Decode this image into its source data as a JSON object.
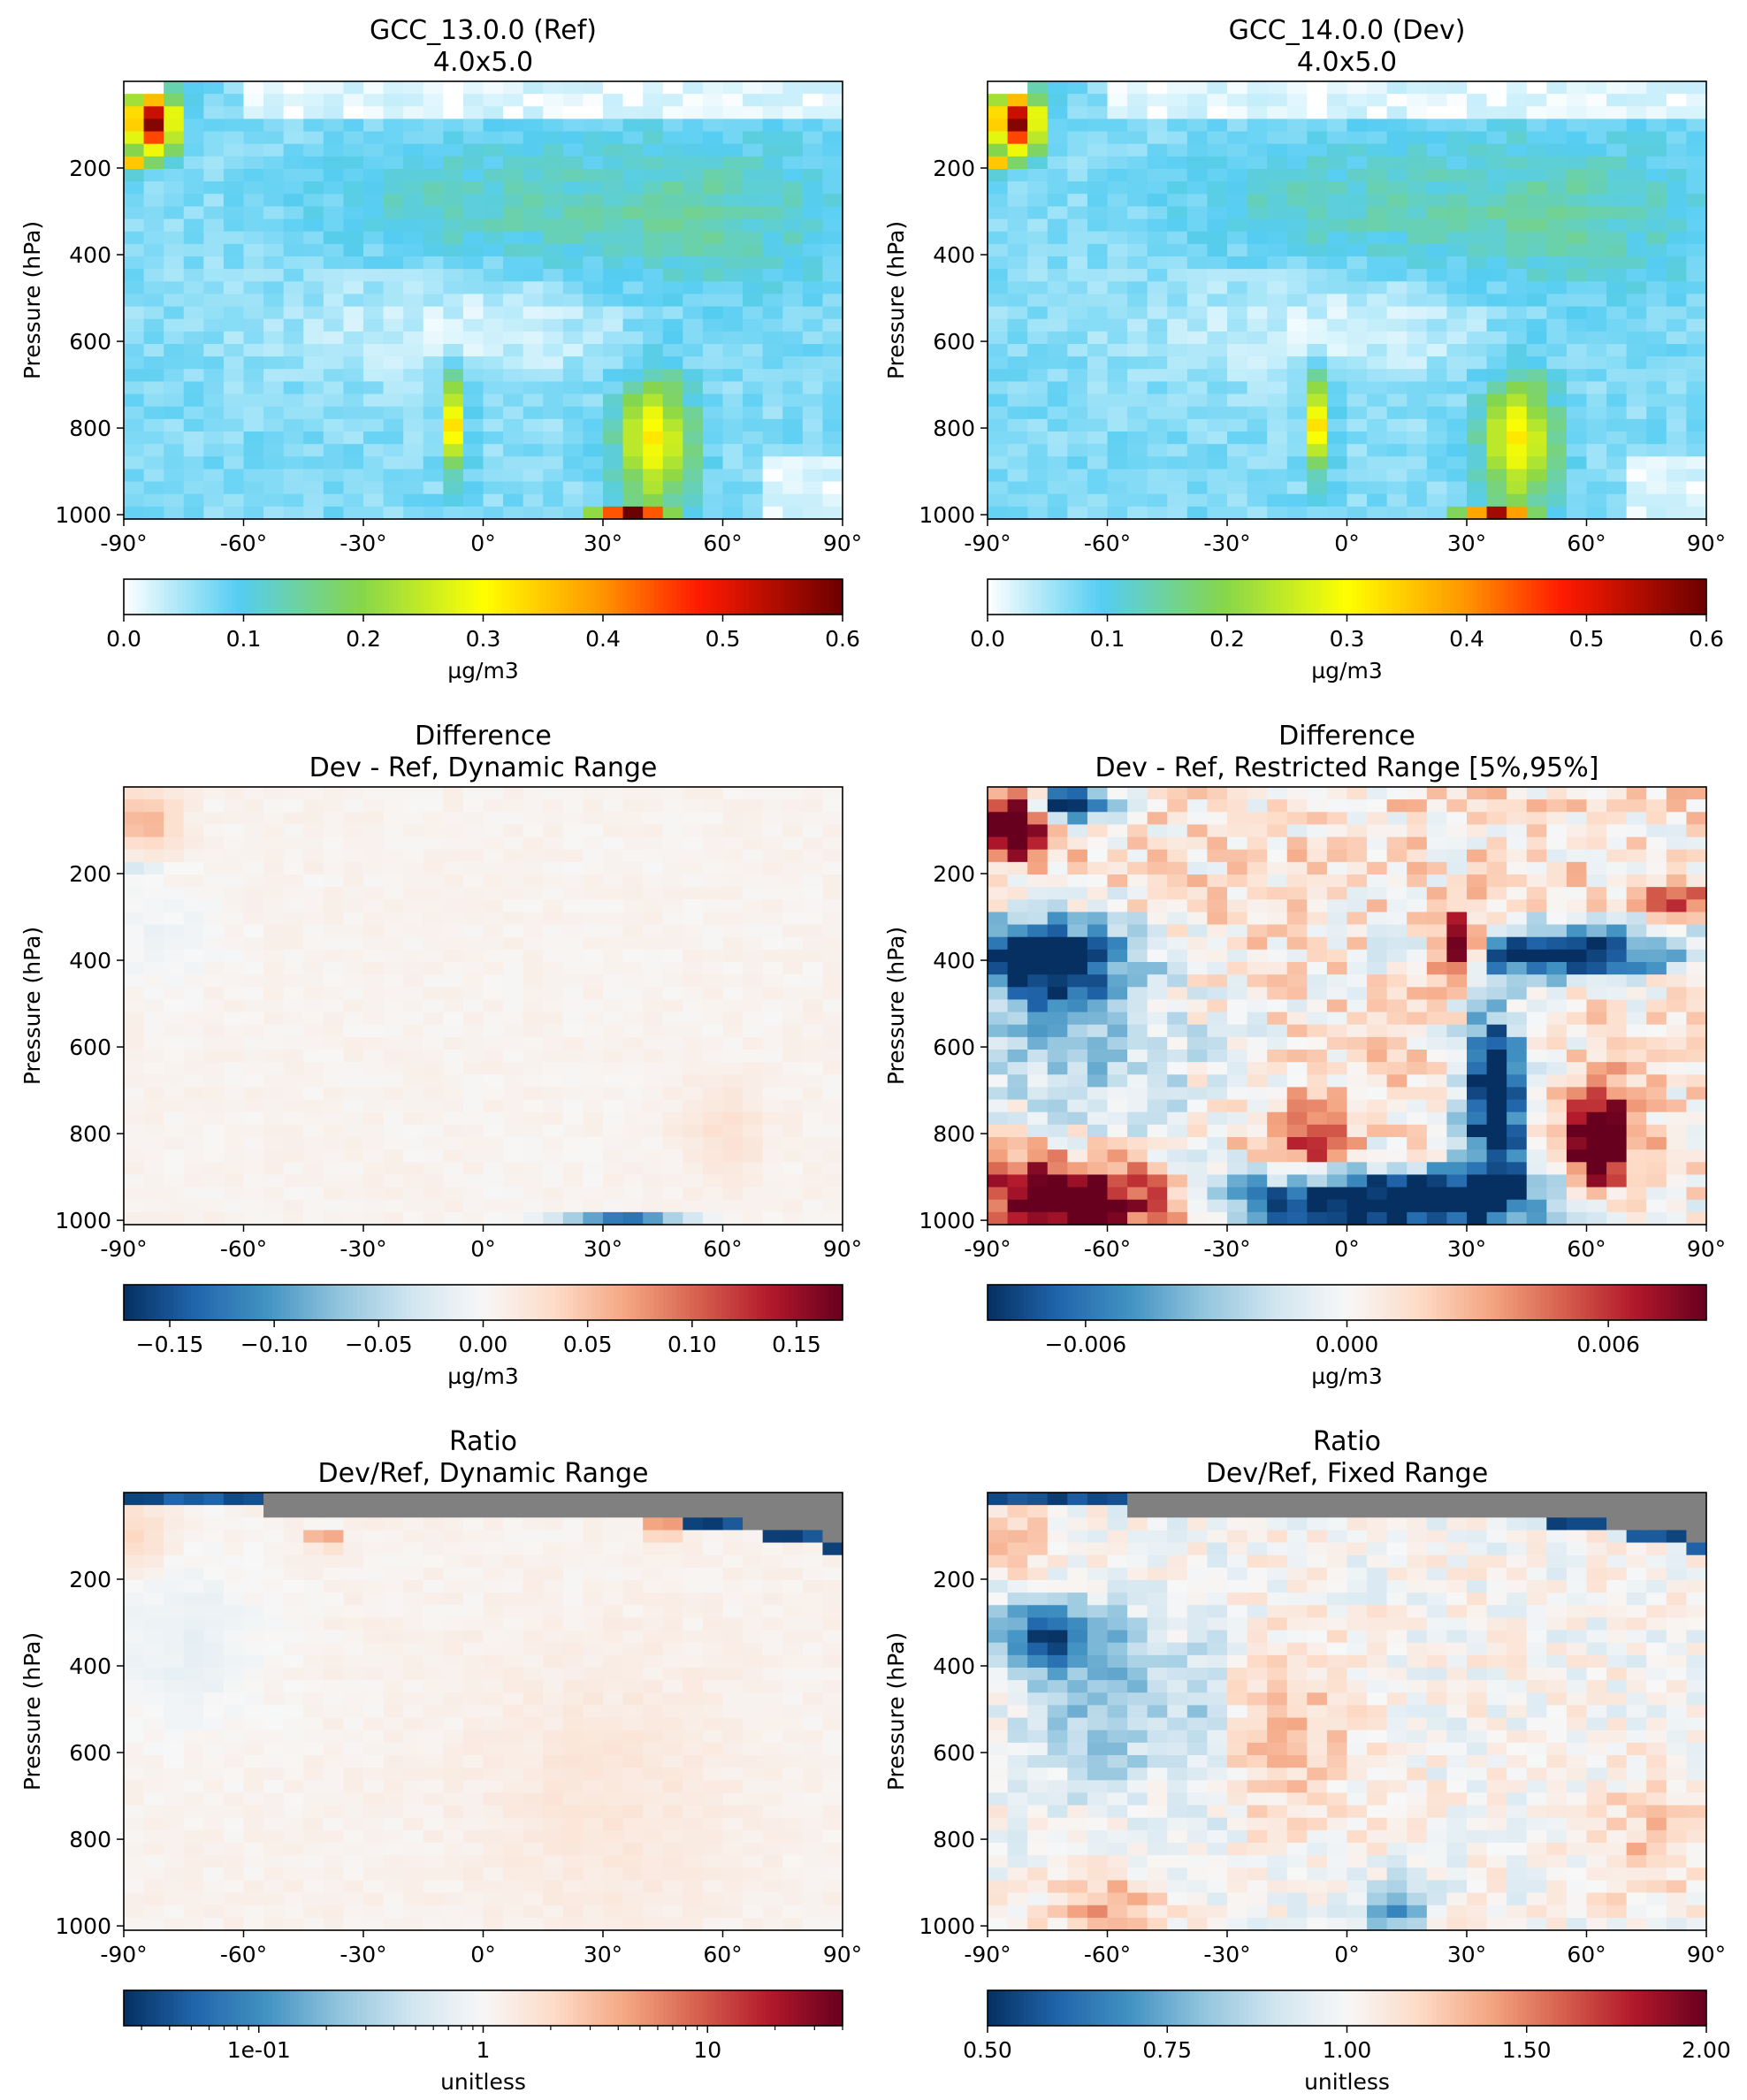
{
  "panels": [
    {
      "id": "ref",
      "title": [
        "GCC_13.0.0 (Ref)",
        "4.0x5.0"
      ],
      "ylabel": "Pressure (hPa)",
      "y_ticks": [
        "200",
        "400",
        "600",
        "800",
        "1000"
      ],
      "x_ticks": [
        "-90°",
        "-60°",
        "-30°",
        "0°",
        "30°",
        "60°",
        "90°"
      ],
      "colormap": "WhGrYlRd",
      "colorbar": {
        "ticks": [
          "0.0",
          "0.1",
          "0.2",
          "0.3",
          "0.4",
          "0.5",
          "0.6"
        ],
        "label": "µg/m3"
      }
    },
    {
      "id": "dev",
      "title": [
        "GCC_14.0.0 (Dev)",
        "4.0x5.0"
      ],
      "ylabel": "Pressure (hPa)",
      "y_ticks": [
        "200",
        "400",
        "600",
        "800",
        "1000"
      ],
      "x_ticks": [
        "-90°",
        "-60°",
        "-30°",
        "0°",
        "30°",
        "60°",
        "90°"
      ],
      "colormap": "WhGrYlRd",
      "colorbar": {
        "ticks": [
          "0.0",
          "0.1",
          "0.2",
          "0.3",
          "0.4",
          "0.5",
          "0.6"
        ],
        "label": "µg/m3"
      }
    },
    {
      "id": "diff-dynamic",
      "title": [
        "Difference",
        "Dev - Ref, Dynamic Range"
      ],
      "ylabel": "Pressure (hPa)",
      "y_ticks": [
        "200",
        "400",
        "600",
        "800",
        "1000"
      ],
      "x_ticks": [
        "-90°",
        "-60°",
        "-30°",
        "0°",
        "30°",
        "60°",
        "90°"
      ],
      "colormap": "RdBu_r",
      "colorbar": {
        "ticks": [
          "−0.15",
          "−0.10",
          "−0.05",
          "0.00",
          "0.05",
          "0.10",
          "0.15"
        ],
        "label": "µg/m3"
      }
    },
    {
      "id": "diff-restricted",
      "title": [
        "Difference",
        "Dev - Ref, Restricted Range [5%,95%]"
      ],
      "ylabel": "Pressure (hPa)",
      "y_ticks": [
        "200",
        "400",
        "600",
        "800",
        "1000"
      ],
      "x_ticks": [
        "-90°",
        "-60°",
        "-30°",
        "0°",
        "30°",
        "60°",
        "90°"
      ],
      "colormap": "RdBu_r",
      "colorbar": {
        "ticks": [
          "−0.006",
          "0.000",
          "0.006"
        ],
        "label": "µg/m3"
      }
    },
    {
      "id": "ratio-dynamic",
      "title": [
        "Ratio",
        "Dev/Ref, Dynamic Range"
      ],
      "ylabel": "Pressure (hPa)",
      "y_ticks": [
        "200",
        "400",
        "600",
        "800",
        "1000"
      ],
      "x_ticks": [
        "-90°",
        "-60°",
        "-30°",
        "0°",
        "30°",
        "60°",
        "90°"
      ],
      "colormap": "RdBu_r",
      "colorbar": {
        "ticks": [
          "1e-01",
          "1",
          "10"
        ],
        "label": "unitless",
        "scale": "log"
      }
    },
    {
      "id": "ratio-fixed",
      "title": [
        "Ratio",
        "Dev/Ref, Fixed Range"
      ],
      "ylabel": "Pressure (hPa)",
      "y_ticks": [
        "200",
        "400",
        "600",
        "800",
        "1000"
      ],
      "x_ticks": [
        "-90°",
        "-60°",
        "-30°",
        "0°",
        "30°",
        "60°",
        "90°"
      ],
      "colormap": "RdBu_r",
      "colorbar": {
        "ticks": [
          "0.50",
          "0.75",
          "1.00",
          "1.50",
          "2.00"
        ],
        "label": "unitless"
      }
    }
  ],
  "chart_data": [
    {
      "type": "heatmap",
      "title": "GCC_13.0.0 (Ref) 4.0x5.0",
      "ylabel": "Pressure (hPa)",
      "xlim": [
        -90,
        90
      ],
      "ylim": [
        1000,
        0
      ],
      "clim": [
        0.0,
        0.6
      ],
      "colorbar_label": "µg/m3",
      "features": [
        {
          "lat": [
            -90,
            -75
          ],
          "pressure": [
            30,
            220
          ],
          "value": 0.33
        },
        {
          "lat": [
            -90,
            -84
          ],
          "pressure": [
            180,
            210
          ],
          "value": 0.47
        },
        {
          "lat": [
            -10,
            -3
          ],
          "pressure": [
            700,
            1000
          ],
          "value": 0.28
        },
        {
          "lat": [
            30,
            55
          ],
          "pressure": [
            700,
            1000
          ],
          "value": 0.27
        },
        {
          "lat": [
            25,
            45
          ],
          "pressure": [
            980,
            1000
          ],
          "value": 0.58
        },
        {
          "lat": [
            20,
            90
          ],
          "pressure": [
            100,
            450
          ],
          "value": 0.09
        }
      ]
    },
    {
      "type": "heatmap",
      "title": "GCC_14.0.0 (Dev) 4.0x5.0",
      "ylabel": "Pressure (hPa)",
      "xlim": [
        -90,
        90
      ],
      "ylim": [
        1000,
        0
      ],
      "clim": [
        0.0,
        0.6
      ],
      "colorbar_label": "µg/m3",
      "features": [
        {
          "lat": [
            -90,
            -75
          ],
          "pressure": [
            30,
            220
          ],
          "value": 0.35
        },
        {
          "lat": [
            -90,
            -84
          ],
          "pressure": [
            180,
            210
          ],
          "value": 0.47
        },
        {
          "lat": [
            -10,
            -3
          ],
          "pressure": [
            700,
            1000
          ],
          "value": 0.28
        },
        {
          "lat": [
            30,
            55
          ],
          "pressure": [
            700,
            1000
          ],
          "value": 0.28
        },
        {
          "lat": [
            30,
            45
          ],
          "pressure": [
            980,
            1000
          ],
          "value": 0.52
        },
        {
          "lat": [
            20,
            90
          ],
          "pressure": [
            100,
            450
          ],
          "value": 0.09
        }
      ]
    },
    {
      "type": "heatmap",
      "title": "Difference Dev - Ref, Dynamic Range",
      "ylabel": "Pressure (hPa)",
      "xlim": [
        -90,
        90
      ],
      "ylim": [
        1000,
        0
      ],
      "clim": [
        -0.17,
        0.17
      ],
      "colorbar_label": "µg/m3",
      "features": [
        {
          "lat": [
            -90,
            -75
          ],
          "pressure": [
            30,
            150
          ],
          "value": 0.05
        },
        {
          "lat": [
            25,
            50
          ],
          "pressure": [
            990,
            1000
          ],
          "value": -0.12
        }
      ]
    },
    {
      "type": "heatmap",
      "title": "Difference Dev - Ref, Restricted Range [5%,95%]",
      "ylabel": "Pressure (hPa)",
      "xlim": [
        -90,
        90
      ],
      "ylim": [
        1000,
        0
      ],
      "clim": [
        -0.008,
        0.008
      ],
      "colorbar_label": "µg/m3",
      "features": [
        {
          "lat": [
            -90,
            -75
          ],
          "pressure": [
            20,
            170
          ],
          "value": 0.008
        },
        {
          "lat": [
            -90,
            -55
          ],
          "pressure": [
            280,
            500
          ],
          "value": -0.006
        },
        {
          "lat": [
            -45,
            90
          ],
          "pressure": [
            820,
            1000
          ],
          "value": -0.008
        },
        {
          "lat": [
            20,
            35
          ],
          "pressure": [
            300,
            450
          ],
          "value": 0.008
        },
        {
          "lat": [
            55,
            75
          ],
          "pressure": [
            680,
            900
          ],
          "value": 0.008
        },
        {
          "lat": [
            -90,
            -50
          ],
          "pressure": [
            850,
            1000
          ],
          "value": 0.006
        }
      ]
    },
    {
      "type": "heatmap",
      "title": "Ratio Dev/Ref, Dynamic Range",
      "ylabel": "Pressure (hPa)",
      "xlim": [
        -90,
        90
      ],
      "ylim": [
        1000,
        0
      ],
      "clim": [
        0.03,
        40
      ],
      "scale": "log",
      "colorbar_label": "unitless",
      "features": [
        {
          "lat": [
            -90,
            90
          ],
          "pressure": [
            20,
            80
          ],
          "value": 0.03
        },
        {
          "lat": [
            -45,
            -40
          ],
          "pressure": [
            90,
            110
          ],
          "value": 10
        },
        {
          "lat": [
            40,
            45
          ],
          "pressure": [
            60,
            90
          ],
          "value": 30
        }
      ]
    },
    {
      "type": "heatmap",
      "title": "Ratio Dev/Ref, Fixed Range",
      "ylabel": "Pressure (hPa)",
      "xlim": [
        -90,
        90
      ],
      "ylim": [
        1000,
        0
      ],
      "clim": [
        0.5,
        2.0
      ],
      "colorbar_label": "unitless",
      "features": [
        {
          "lat": [
            -90,
            -70
          ],
          "pressure": [
            30,
            200
          ],
          "value": 1.3
        },
        {
          "lat": [
            -90,
            -60
          ],
          "pressure": [
            280,
            400
          ],
          "value": 0.6
        },
        {
          "lat": [
            -30,
            30
          ],
          "pressure": [
            400,
            700
          ],
          "value": 1.25
        },
        {
          "lat": [
            5,
            20
          ],
          "pressure": [
            900,
            1000
          ],
          "value": 0.55
        },
        {
          "lat": [
            -90,
            90
          ],
          "pressure": [
            20,
            90
          ],
          "value": 0.5
        }
      ]
    }
  ]
}
